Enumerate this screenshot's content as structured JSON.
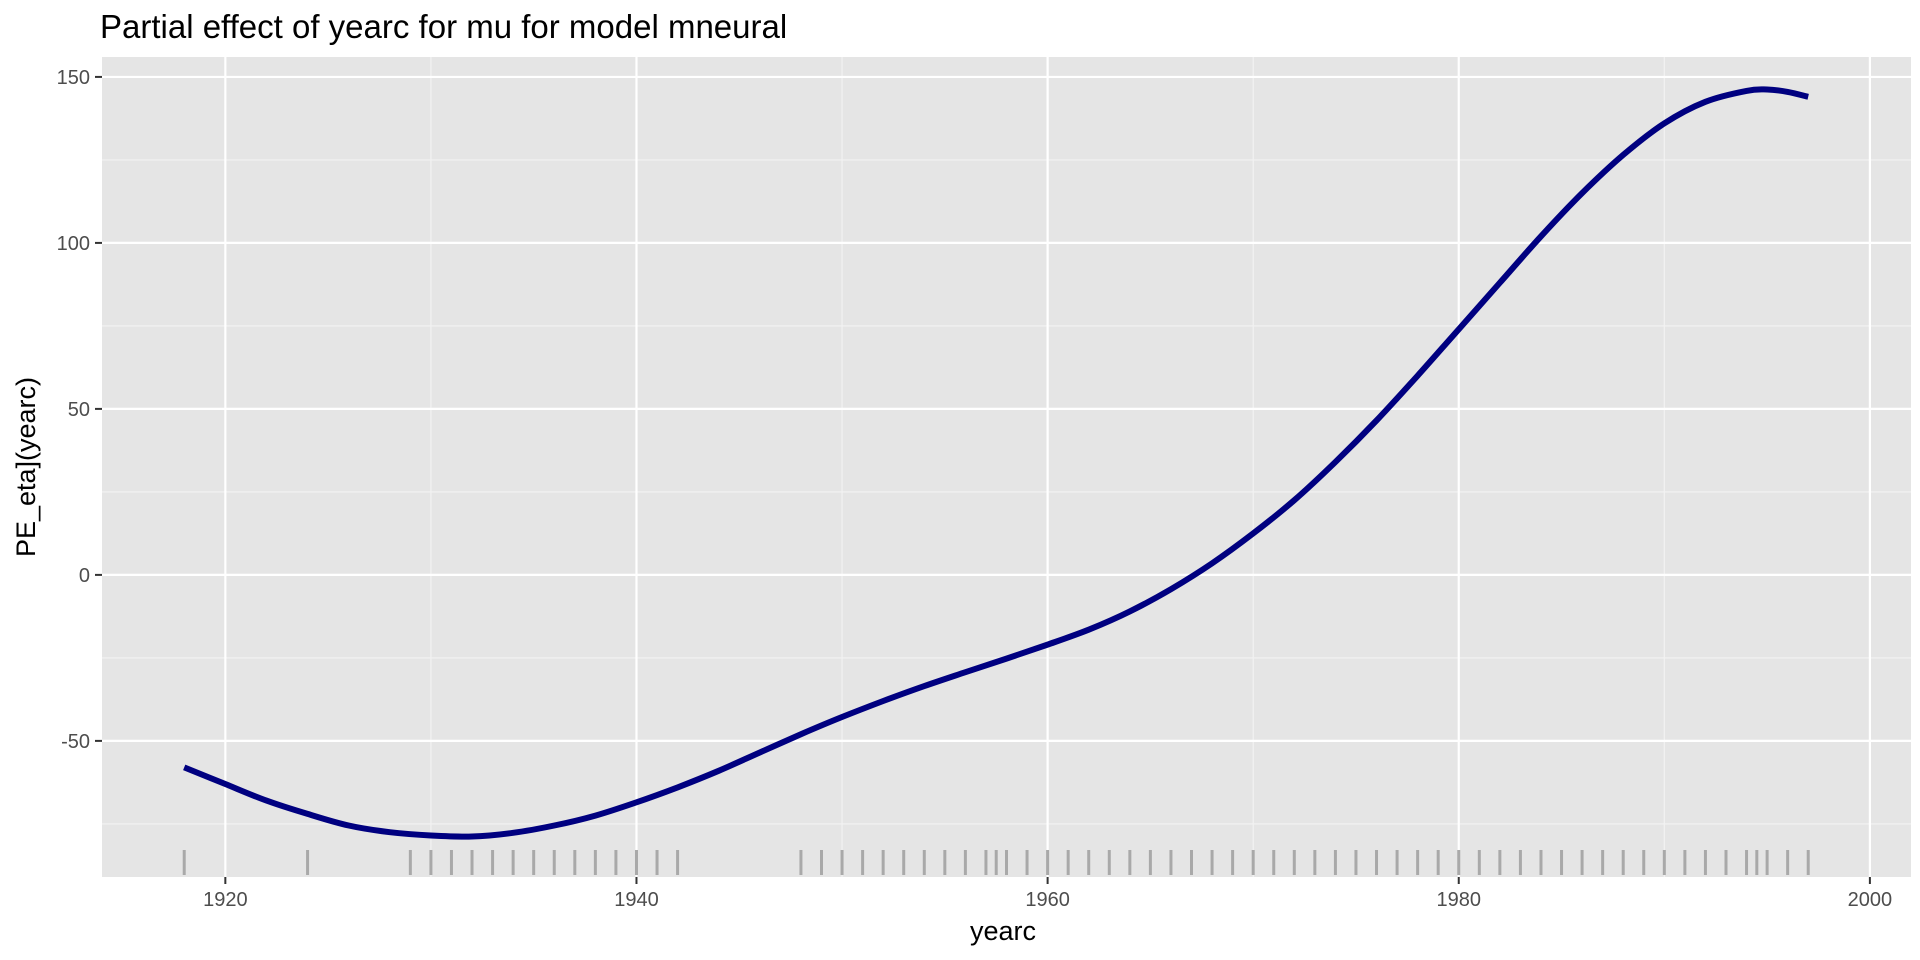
{
  "chart_data": {
    "type": "line",
    "title": "Partial effect of yearc for mu for model mneural",
    "xlabel": "yearc",
    "ylabel": "PE_eta](yearc)",
    "xlim": [
      1914,
      2002
    ],
    "ylim": [
      -91,
      156
    ],
    "x_ticks": [
      1920,
      1940,
      1960,
      1980,
      2000
    ],
    "x_tick_labels": [
      "1920",
      "1940",
      "1960",
      "1980",
      "2000"
    ],
    "y_ticks": [
      150,
      100,
      50,
      0,
      -50
    ],
    "y_tick_labels": [
      "150",
      "100",
      "50",
      "0",
      "-50"
    ],
    "grid": true,
    "line_color": "#000080",
    "series": [
      {
        "x": [
          1918,
          1920,
          1922,
          1924,
          1926,
          1928,
          1930,
          1932,
          1934,
          1936,
          1938,
          1940,
          1942,
          1944,
          1946,
          1948,
          1950,
          1952,
          1954,
          1956,
          1958,
          1960,
          1962,
          1964,
          1966,
          1968,
          1970,
          1972,
          1974,
          1976,
          1978,
          1980,
          1982,
          1984,
          1986,
          1988,
          1990,
          1992,
          1994,
          1995,
          1996,
          1997
        ],
        "y": [
          -58,
          -63,
          -68,
          -72,
          -75.5,
          -77.5,
          -78.5,
          -78.8,
          -77.7,
          -75.5,
          -72.5,
          -68.5,
          -64,
          -59,
          -53.5,
          -48,
          -42.8,
          -38,
          -33.5,
          -29.3,
          -25.2,
          -21,
          -16.5,
          -11,
          -4.3,
          3.5,
          12.5,
          22.5,
          34,
          46.5,
          60,
          74,
          88,
          102,
          115,
          126.5,
          136,
          142.5,
          145.8,
          146.2,
          145.5,
          144
        ]
      }
    ],
    "rug_x": [
      1918,
      1924,
      1929,
      1930,
      1931,
      1932,
      1933,
      1934,
      1935,
      1936,
      1937,
      1938,
      1939,
      1940,
      1941,
      1942,
      1948,
      1949,
      1950,
      1951,
      1952,
      1953,
      1954,
      1955,
      1956,
      1957,
      1957.5,
      1958,
      1959,
      1960,
      1961,
      1962,
      1963,
      1964,
      1965,
      1966,
      1967,
      1968,
      1969,
      1970,
      1971,
      1972,
      1973,
      1974,
      1975,
      1976,
      1977,
      1978,
      1979,
      1980,
      1981,
      1982,
      1983,
      1984,
      1985,
      1986,
      1987,
      1988,
      1989,
      1990,
      1991,
      1992,
      1993,
      1994,
      1994.5,
      1995,
      1996,
      1997
    ]
  }
}
